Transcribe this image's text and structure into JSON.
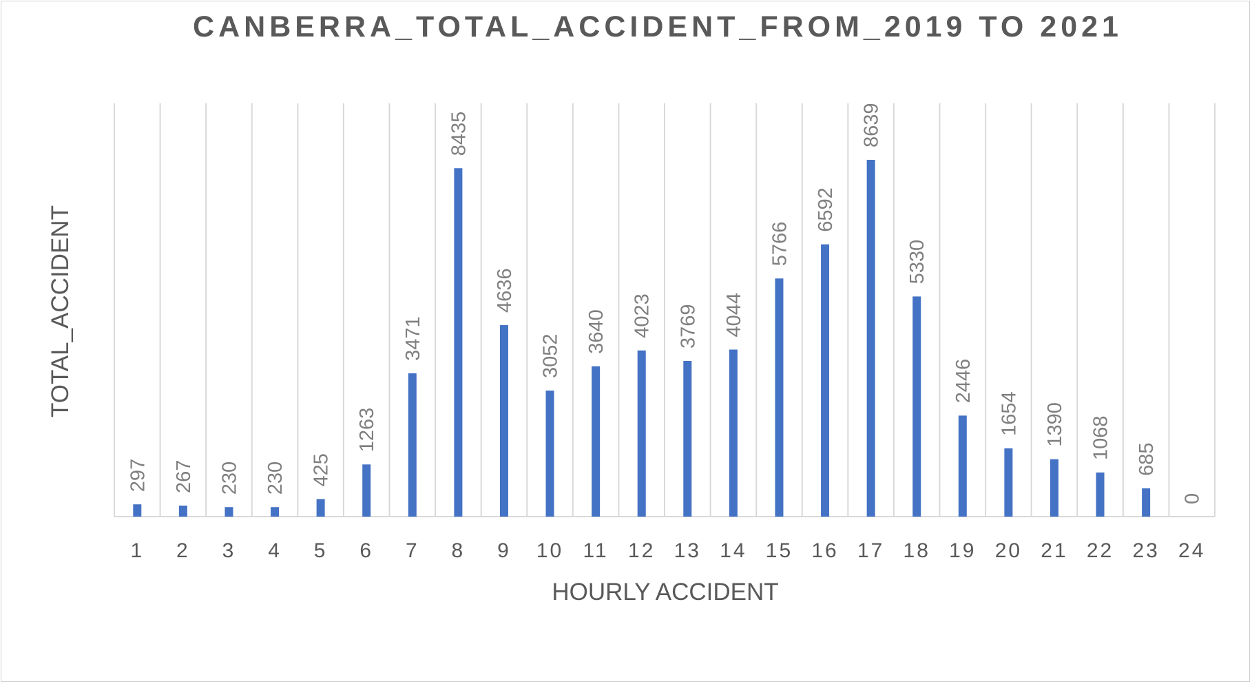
{
  "chart_data": {
    "type": "bar",
    "title": "CANBERRA_TOTAL_ACCIDENT_FROM_2019 TO 2021",
    "xlabel": "HOURLY ACCIDENT",
    "ylabel": "TOTAL_ACCIDENT",
    "categories": [
      "1",
      "2",
      "3",
      "4",
      "5",
      "6",
      "7",
      "8",
      "9",
      "10",
      "11",
      "12",
      "13",
      "14",
      "15",
      "16",
      "17",
      "18",
      "19",
      "20",
      "21",
      "22",
      "23",
      "24"
    ],
    "series": [
      {
        "values": [
          297,
          267,
          230,
          230,
          425,
          1263,
          3471,
          8435,
          4636,
          3052,
          3640,
          4023,
          3769,
          4044,
          5766,
          6592,
          8639,
          5330,
          2446,
          1654,
          1390,
          1068,
          685,
          0
        ],
        "color": "#4472c4"
      }
    ],
    "ylim": [
      0,
      10000
    ],
    "grid": "vertical",
    "legend": "none",
    "data_labels": true
  }
}
